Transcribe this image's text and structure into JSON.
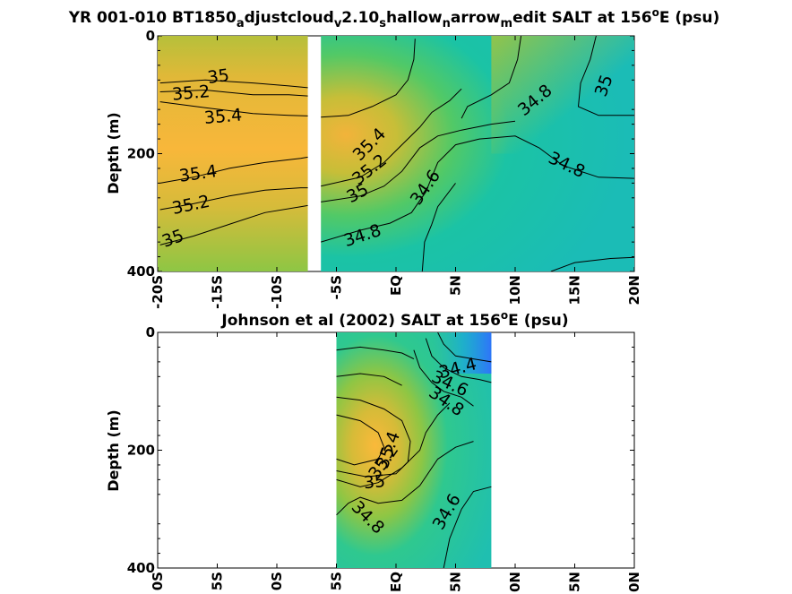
{
  "chart_data": [
    {
      "type": "heatmap",
      "title": {
        "pre": "YR 001-010 BT1850",
        "subs": [
          [
            "a",
            "djustcloud"
          ],
          [
            "v",
            "2.10"
          ],
          [
            "s",
            "hallow"
          ],
          [
            "n",
            "arrow"
          ],
          [
            "m",
            "edit SALT at 156"
          ]
        ],
        "sup": "o",
        "post": "E (psu)"
      },
      "ylabel": "Depth (m)",
      "xlim": [
        -20,
        20
      ],
      "ylim": [
        400,
        0
      ],
      "xticks": [
        -20,
        -15,
        -10,
        -5,
        0,
        5,
        10,
        15,
        20
      ],
      "xtick_labels": [
        "-20S",
        "-15S",
        "-10S",
        "-5S",
        "EQ",
        "5N",
        "10N",
        "15N",
        "20N"
      ],
      "yticks": [
        0,
        200,
        400
      ],
      "ytick_labels": [
        "0",
        "200",
        "400"
      ],
      "data_gaps": [
        [
          -7.4,
          -6.3
        ]
      ],
      "colormap": [
        "#3e26a8",
        "#2f74f9",
        "#1aa6e0",
        "#2ab7b6",
        "#14c2aa",
        "#2dc78f",
        "#78c84b",
        "#a7c43a",
        "#d2bb3a",
        "#f3b23a",
        "#fabb38"
      ],
      "field_samples": {
        "x": [
          -20,
          -15,
          -10,
          -5,
          0,
          5,
          10,
          15,
          20
        ],
        "depth": [
          0,
          100,
          200,
          300,
          400
        ],
        "values": [
          [
            35.15,
            35.05,
            35.0,
            35.0,
            35.05,
            34.75,
            34.7,
            34.85,
            35.0
          ],
          [
            35.4,
            35.35,
            35.3,
            35.35,
            35.2,
            34.75,
            34.65,
            34.75,
            34.95
          ],
          [
            35.5,
            35.45,
            35.4,
            35.45,
            35.0,
            34.6,
            34.65,
            34.75,
            34.9
          ],
          [
            35.1,
            35.1,
            35.05,
            35.0,
            34.7,
            34.6,
            34.6,
            34.6,
            34.65
          ],
          [
            34.95,
            34.9,
            34.85,
            34.8,
            34.65,
            34.6,
            34.6,
            34.55,
            34.6
          ]
        ]
      },
      "contours": [
        {
          "level": "35",
          "points": [
            [
              -19.8,
              80
            ],
            [
              -16,
              75
            ],
            [
              -12,
              80
            ],
            [
              -9,
              85
            ],
            [
              -7.4,
              88
            ]
          ]
        },
        {
          "level": "35.2",
          "points": [
            [
              -19.8,
              95
            ],
            [
              -16,
              92
            ],
            [
              -12,
              100
            ],
            [
              -9,
              100
            ],
            [
              -7.4,
              102
            ]
          ]
        },
        {
          "level": "35.4",
          "points": [
            [
              -19.8,
              112
            ],
            [
              -16,
              122
            ],
            [
              -12,
              132
            ],
            [
              -9,
              135
            ],
            [
              -7.4,
              136
            ]
          ]
        },
        {
          "level": "35.4",
          "points": [
            [
              -19.8,
              250
            ],
            [
              -17,
              240
            ],
            [
              -14,
              225
            ],
            [
              -11,
              215
            ],
            [
              -8,
              208
            ],
            [
              -7.4,
              206
            ]
          ]
        },
        {
          "level": "35.2",
          "points": [
            [
              -19.8,
              295
            ],
            [
              -17,
              285
            ],
            [
              -14,
              272
            ],
            [
              -11,
              262
            ],
            [
              -8,
              258
            ],
            [
              -7.4,
              258
            ]
          ]
        },
        {
          "level": "35",
          "points": [
            [
              -19.8,
              355
            ],
            [
              -17,
              340
            ],
            [
              -14,
              320
            ],
            [
              -11,
              300
            ],
            [
              -8,
              290
            ],
            [
              -7.4,
              288
            ]
          ]
        },
        {
          "level": "35.4",
          "points": [
            [
              -6.3,
              138
            ],
            [
              -4,
              135
            ],
            [
              -2,
              120
            ],
            [
              0,
              100
            ],
            [
              1,
              75
            ],
            [
              1.5,
              40
            ],
            [
              1.6,
              5
            ]
          ]
        },
        {
          "level": "35.2",
          "points": [
            [
              -6.3,
              255
            ],
            [
              -3,
              240
            ],
            [
              -1,
              215
            ],
            [
              0.5,
              185
            ],
            [
              2,
              155
            ],
            [
              3,
              130
            ],
            [
              4.5,
              110
            ],
            [
              5.5,
              90
            ]
          ]
        },
        {
          "level": "35",
          "points": [
            [
              -6.3,
              282
            ],
            [
              -3,
              272
            ],
            [
              -1,
              255
            ],
            [
              0.5,
              230
            ],
            [
              2,
              190
            ],
            [
              3.5,
              170
            ],
            [
              5.5,
              160
            ],
            [
              8,
              150
            ],
            [
              10,
              145
            ]
          ]
        },
        {
          "level": "34.8",
          "points": [
            [
              -6.3,
              350
            ],
            [
              -3,
              330
            ],
            [
              -0.5,
              318
            ],
            [
              1.3,
              300
            ],
            [
              2.5,
              265
            ],
            [
              3.5,
              215
            ],
            [
              5,
              185
            ],
            [
              7,
              175
            ],
            [
              10,
              170
            ],
            [
              12,
              190
            ],
            [
              14,
              220
            ],
            [
              17,
              240
            ],
            [
              20,
              242
            ]
          ]
        },
        {
          "level": "34.6",
          "points": [
            [
              2.2,
              400
            ],
            [
              2.4,
              350
            ],
            [
              3,
              320
            ],
            [
              3.5,
              290
            ],
            [
              5,
              250
            ]
          ]
        },
        {
          "level": "34.8",
          "points": [
            [
              10.5,
              0
            ],
            [
              10.2,
              40
            ],
            [
              9.5,
              80
            ],
            [
              8,
              100
            ],
            [
              6,
              120
            ],
            [
              5.5,
              140
            ]
          ]
        },
        {
          "level": "35",
          "points": [
            [
              16.8,
              0
            ],
            [
              16.3,
              40
            ],
            [
              15.5,
              80
            ],
            [
              15.3,
              120
            ],
            [
              17,
              135
            ],
            [
              20,
              135
            ]
          ]
        },
        {
          "level": "34.6",
          "points": [
            [
              13,
              400
            ],
            [
              15,
              385
            ],
            [
              18,
              378
            ],
            [
              20,
              376
            ]
          ]
        }
      ],
      "contour_labels": [
        {
          "text": "35",
          "x": -14.9,
          "y": 70,
          "angle": -8
        },
        {
          "text": "35.2",
          "x": -17.2,
          "y": 98,
          "angle": -5
        },
        {
          "text": "35.4",
          "x": -14.5,
          "y": 138,
          "angle": -5
        },
        {
          "text": "35.4",
          "x": -16.6,
          "y": 235,
          "angle": -8
        },
        {
          "text": "35.2",
          "x": -17.2,
          "y": 288,
          "angle": -12
        },
        {
          "text": "35",
          "x": -18.7,
          "y": 345,
          "angle": -20
        },
        {
          "text": "35.4",
          "x": -2.2,
          "y": 185,
          "angle": -45
        },
        {
          "text": "35.2",
          "x": -2.2,
          "y": 228,
          "angle": -38
        },
        {
          "text": "35",
          "x": -3.2,
          "y": 268,
          "angle": -28
        },
        {
          "text": "34.6",
          "x": 2.5,
          "y": 258,
          "angle": -55
        },
        {
          "text": "34.8",
          "x": -2.8,
          "y": 340,
          "angle": -18
        },
        {
          "text": "34.8",
          "x": 11.7,
          "y": 110,
          "angle": -40
        },
        {
          "text": "34.8",
          "x": 14.3,
          "y": 220,
          "angle": 25
        },
        {
          "text": "35",
          "x": 17.5,
          "y": 85,
          "angle": -70
        }
      ]
    },
    {
      "type": "heatmap",
      "title": {
        "pre": "Johnson et al (2002) SALT at 156",
        "sup": "o",
        "post": "E (psu)"
      },
      "ylabel": "Depth (m)",
      "xlim": [
        -20,
        20
      ],
      "ylim": [
        400,
        0
      ],
      "xticks": [
        -20,
        -15,
        -10,
        -5,
        0,
        5,
        10,
        15,
        20
      ],
      "xtick_labels": [
        "0S",
        "5S",
        "0S",
        "5S",
        "EQ",
        "5N",
        "0N",
        "5N",
        "0N"
      ],
      "yticks": [
        0,
        200,
        400
      ],
      "ytick_labels": [
        "0",
        "200",
        "400"
      ],
      "data_extent": [
        -5,
        8
      ],
      "colormap": [
        "#3e26a8",
        "#2f74f9",
        "#1aa6e0",
        "#2ab7b6",
        "#14c2aa",
        "#2dc78f",
        "#78c84b",
        "#a7c43a",
        "#d2bb3a",
        "#f3b23a",
        "#fabb38"
      ],
      "field_samples": {
        "x": [
          -5,
          -3,
          -1,
          1,
          3,
          5,
          7,
          8
        ],
        "depth": [
          0,
          100,
          200,
          300,
          400
        ],
        "values": [
          [
            34.95,
            34.95,
            34.9,
            34.85,
            34.7,
            34.55,
            34.3,
            33.8
          ],
          [
            35.1,
            35.1,
            35.0,
            34.95,
            34.75,
            34.65,
            34.6,
            34.55
          ],
          [
            35.45,
            35.4,
            35.2,
            34.85,
            34.65,
            34.6,
            34.6,
            34.6
          ],
          [
            34.9,
            34.85,
            34.75,
            34.65,
            34.6,
            34.6,
            34.55,
            34.55
          ],
          [
            34.75,
            34.7,
            34.65,
            34.6,
            34.6,
            34.55,
            34.55,
            34.5
          ]
        ]
      },
      "contours": [
        {
          "level": "34.4",
          "points": [
            [
              3.5,
              0
            ],
            [
              4,
              20
            ],
            [
              5,
              40
            ],
            [
              6.5,
              45
            ],
            [
              8,
              50
            ]
          ]
        },
        {
          "level": "34.6",
          "points": [
            [
              2.5,
              10
            ],
            [
              3,
              40
            ],
            [
              4,
              60
            ],
            [
              5.5,
              75
            ],
            [
              7,
              80
            ],
            [
              8,
              85
            ]
          ]
        },
        {
          "level": "34.8",
          "points": [
            [
              1.5,
              30
            ],
            [
              2,
              60
            ],
            [
              3,
              85
            ],
            [
              4,
              100
            ],
            [
              5.5,
              110
            ],
            [
              6.5,
              125
            ]
          ]
        },
        {
          "level": "35",
          "points": [
            [
              -5,
              30
            ],
            [
              -3,
              25
            ],
            [
              -1,
              30
            ],
            [
              0.5,
              35
            ],
            [
              1.5,
              45
            ]
          ]
        },
        {
          "level": "35",
          "points": [
            [
              -5,
              75
            ],
            [
              -3,
              70
            ],
            [
              -1,
              75
            ],
            [
              0.5,
              90
            ]
          ]
        },
        {
          "level": "35.2",
          "points": [
            [
              -5,
              110
            ],
            [
              -3,
              115
            ],
            [
              -1,
              130
            ],
            [
              0.5,
              150
            ],
            [
              1.2,
              185
            ],
            [
              1,
              220
            ],
            [
              0,
              240
            ],
            [
              -2.5,
              245
            ],
            [
              -5,
              235
            ]
          ]
        },
        {
          "level": "35.4",
          "points": [
            [
              -5,
              140
            ],
            [
              -3,
              150
            ],
            [
              -1.5,
              170
            ],
            [
              -1,
              195
            ],
            [
              -1.5,
              215
            ],
            [
              -3.5,
              225
            ],
            [
              -5,
              215
            ]
          ]
        },
        {
          "level": "35",
          "points": [
            [
              -5,
              250
            ],
            [
              -3,
              262
            ],
            [
              -1.5,
              255
            ],
            [
              0.5,
              230
            ],
            [
              2,
              200
            ],
            [
              2.5,
              170
            ],
            [
              3.5,
              140
            ],
            [
              4.5,
              120
            ]
          ]
        },
        {
          "level": "34.8",
          "points": [
            [
              -5,
              310
            ],
            [
              -4,
              290
            ],
            [
              -3,
              280
            ],
            [
              -1.5,
              290
            ],
            [
              0.5,
              285
            ],
            [
              2,
              260
            ],
            [
              3.5,
              215
            ],
            [
              5,
              195
            ],
            [
              6.5,
              185
            ]
          ]
        },
        {
          "level": "34.6",
          "points": [
            [
              4,
              400
            ],
            [
              4.5,
              350
            ],
            [
              5.5,
              300
            ],
            [
              6.5,
              270
            ],
            [
              8,
              262
            ]
          ]
        }
      ],
      "contour_labels": [
        {
          "text": "34.4",
          "x": 5.2,
          "y": 62,
          "angle": -15
        },
        {
          "text": "34.6",
          "x": 4.5,
          "y": 88,
          "angle": 25
        },
        {
          "text": "34.8",
          "x": 4.2,
          "y": 118,
          "angle": 35
        },
        {
          "text": "35.4",
          "x": -0.6,
          "y": 200,
          "angle": -70
        },
        {
          "text": "35.2",
          "x": -1,
          "y": 220,
          "angle": -55
        },
        {
          "text": "35",
          "x": -1.8,
          "y": 255,
          "angle": -5
        },
        {
          "text": "34.8",
          "x": -2.4,
          "y": 315,
          "angle": 45
        },
        {
          "text": "34.6",
          "x": 4.3,
          "y": 305,
          "angle": -60
        }
      ]
    }
  ]
}
